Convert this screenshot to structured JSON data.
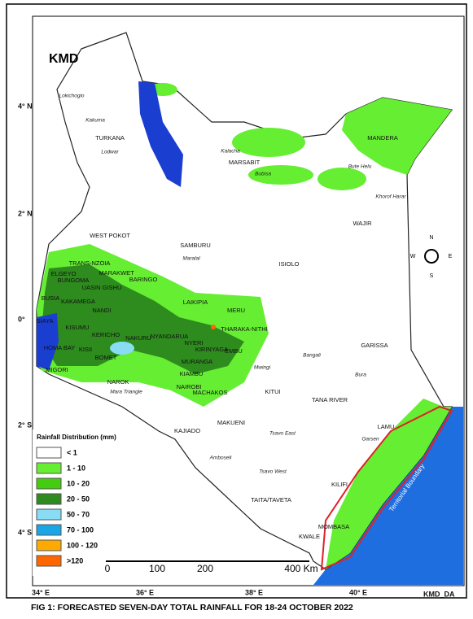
{
  "header": {
    "logo_text": "KMD"
  },
  "map": {
    "latitude_labels": [
      "4° N",
      "2° N",
      "0°",
      "2° S",
      "4° S"
    ],
    "longitude_labels": [
      "34° E",
      "36° E",
      "38° E",
      "40° E"
    ],
    "regions": [
      "TURKANA",
      "MARSABIT",
      "MANDERA",
      "WAJIR",
      "WEST POKOT",
      "SAMBURU",
      "ISIOLO",
      "TRANS-NZOIA",
      "ELGEYO",
      "MARAKWET",
      "BUNGOMA",
      "UASIN GISHU",
      "BARINGO",
      "KAKAMEGA",
      "BUSIA",
      "NANDI",
      "SIAYA",
      "KISUMU",
      "KERICHO",
      "NAKURU",
      "NYANDARUA",
      "LAIKIPIA",
      "MERU",
      "THARAKA-NITHI",
      "NYERI",
      "KIRINYAGA",
      "EMBU",
      "MURANGA",
      "HOMA BAY",
      "KISII",
      "BOMET",
      "MIGORI",
      "NAROK",
      "KIAMBU",
      "NAIROBI",
      "MACHAKOS",
      "KITUI",
      "GARISSA",
      "TANA RIVER",
      "LAMU",
      "KAJIADO",
      "MAKUENI",
      "TAITA/TAVETA",
      "KILIFI",
      "KWALE",
      "MOMBASA"
    ],
    "places": [
      "Lokichogio",
      "Kakuma",
      "Lodwar",
      "Kalacha",
      "Bubisa",
      "Bute Helu",
      "Khorof Harar",
      "Maralal",
      "Mwingi",
      "Bangali",
      "Bura",
      "Garsen",
      "Tsavo East",
      "Tsavo West",
      "Amboseli",
      "Mara Triangle"
    ],
    "boundary_label": "Territorial Boundary"
  },
  "legend": {
    "title": "Rainfall Distribution (mm)",
    "classes": [
      {
        "label": "< 1",
        "color": "#ffffff"
      },
      {
        "label": "1 - 10",
        "color": "#66ee33"
      },
      {
        "label": "10 - 20",
        "color": "#44cc11"
      },
      {
        "label": "20 - 50",
        "color": "#2e8b1e"
      },
      {
        "label": "50 - 70",
        "color": "#88ddf5"
      },
      {
        "label": "70 - 100",
        "color": "#1aa6e6"
      },
      {
        "label": "100 - 120",
        "color": "#ffaa00"
      },
      {
        "label": ">120",
        "color": "#ff6600"
      }
    ]
  },
  "scale_bar": [
    "0",
    "100",
    "200",
    "400 Km"
  ],
  "compass": [
    "N",
    "S",
    "E",
    "W"
  ],
  "credit": "KMD_DA",
  "caption": "FIG 1: FORECASTED SEVEN-DAY TOTAL RAINFALL FOR 18-24 OCTOBER 2022"
}
